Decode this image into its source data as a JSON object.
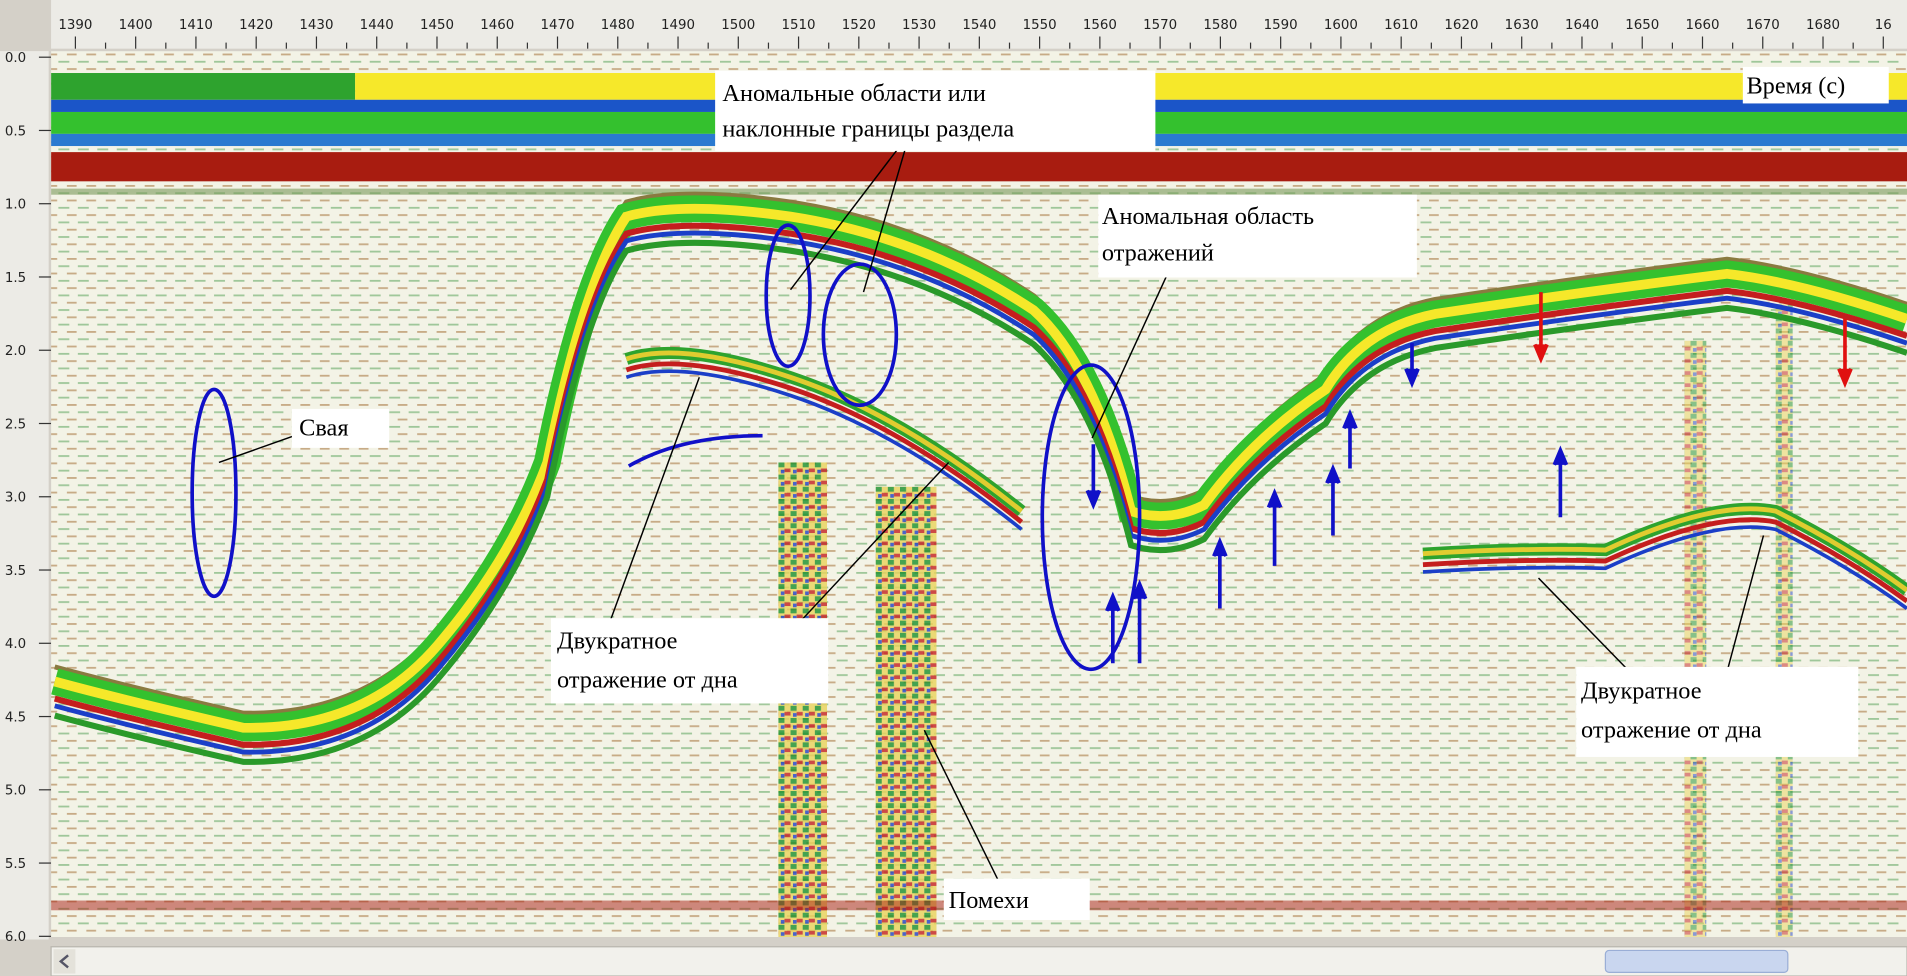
{
  "ruler": {
    "top": [
      "1390",
      "1400",
      "1410",
      "1420",
      "1430",
      "1440",
      "1450",
      "1460",
      "1470",
      "1480",
      "1490",
      "1500",
      "1510",
      "1520",
      "1530",
      "1540",
      "1550",
      "1560",
      "1570",
      "1580",
      "1590",
      "1600",
      "1610",
      "1620",
      "1630",
      "1640",
      "1650",
      "1660",
      "1670",
      "1680",
      "16"
    ],
    "left": [
      "0.0",
      "0.5",
      "1.0",
      "1.5",
      "2.0",
      "2.5",
      "3.0",
      "3.5",
      "4.0",
      "4.5",
      "5.0",
      "5.5",
      "6.0"
    ]
  },
  "annotations": {
    "anomalous_boundaries": [
      "Аномальные области или",
      "наклонные границы раздела"
    ],
    "time_label": "Время (с)",
    "anomalous_reflections": [
      "Аномальная область",
      "отражений"
    ],
    "pile": "Свая",
    "multiple_left": [
      "Двукратное",
      "отражение от дна"
    ],
    "multiple_right": [
      "Двукратное",
      "отражение от дна"
    ],
    "noise": "Помехи"
  }
}
